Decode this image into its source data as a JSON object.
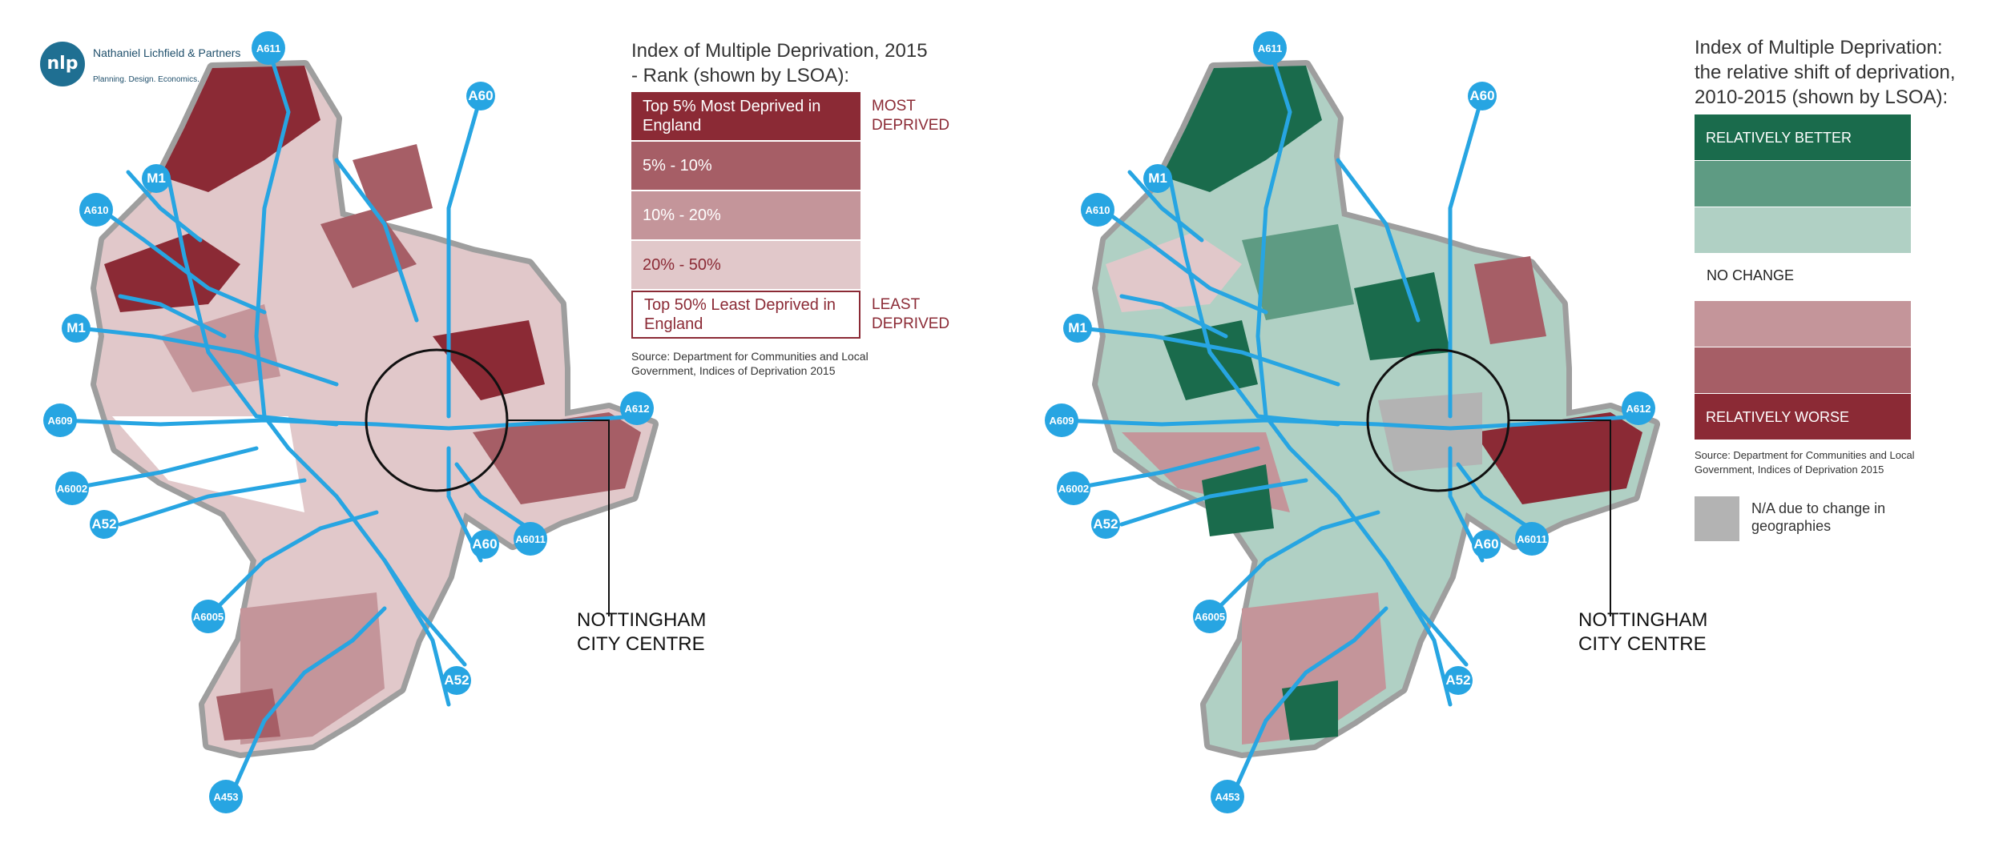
{
  "logo": {
    "abbr": "nlp",
    "name": "Nathaniel Lichfield & Partners",
    "tagline": "Planning. Design. Economics."
  },
  "left_legend": {
    "title_line1": "Index of Multiple Deprivation, 2015",
    "title_line2": "- Rank (shown by LSOA):",
    "classes": [
      {
        "label": "Top 5% Most Deprived in England",
        "color": "#8b2a35"
      },
      {
        "label": "5% - 10%",
        "color": "#a65e66"
      },
      {
        "label": "10% - 20%",
        "color": "#c4959a"
      },
      {
        "label": "20% - 50%",
        "color": "#e1c8ca"
      },
      {
        "label": "Top 50% Least Deprived in England",
        "color": "#ffffff"
      }
    ],
    "most_label": "MOST DEPRIVED",
    "least_label": "LEAST DEPRIVED",
    "source": "Source: Department for Communities and Local Government, Indices of Deprivation 2015"
  },
  "right_legend": {
    "title_line1": "Index of Multiple Deprivation:",
    "title_line2": "the relative shift of deprivation,",
    "title_line3": "2010-2015 (shown by LSOA):",
    "better_classes": [
      {
        "label": "RELATIVELY BETTER",
        "color": "#1a6b4c"
      },
      {
        "label": "",
        "color": "#5e9b83"
      },
      {
        "label": "",
        "color": "#b0d0c4"
      }
    ],
    "no_change_label": "NO CHANGE",
    "worse_classes": [
      {
        "label": "",
        "color": "#c4959a"
      },
      {
        "label": "",
        "color": "#a65e66"
      },
      {
        "label": "RELATIVELY WORSE",
        "color": "#8b2a35"
      }
    ],
    "source": "Source: Department for Communities and Local Government, Indices of Deprivation 2015",
    "na_label": "N/A due to change in geographies",
    "na_color": "#b3b3b3"
  },
  "city_centre_label": "NOTTINGHAM CITY CENTRE",
  "road_labels": [
    "A611",
    "A60",
    "M1",
    "A610",
    "M1",
    "A609",
    "A6002",
    "A52",
    "A6005",
    "A60",
    "A6011",
    "A612",
    "A52",
    "A453"
  ],
  "colors": {
    "road": "#27a5e2",
    "boundary": "#9e9e9e",
    "deprived_dark": "#8b2a35",
    "better_dark": "#1a6b4c"
  }
}
